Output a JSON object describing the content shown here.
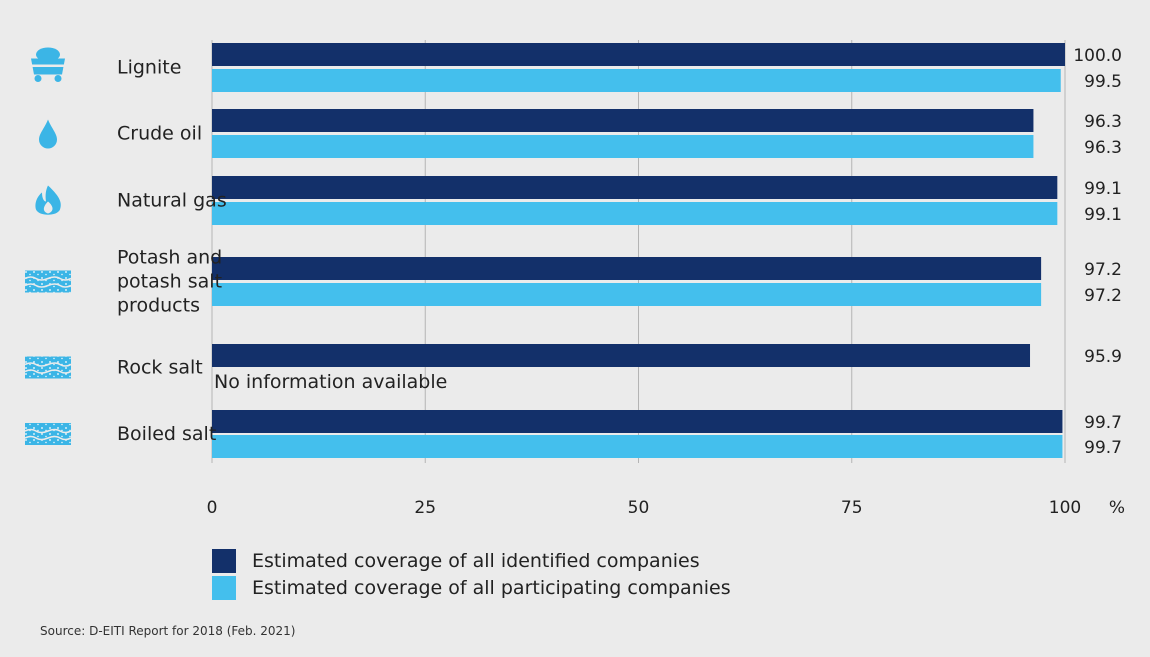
{
  "colors": {
    "identified": "#13306a",
    "participating": "#44bfed",
    "icon": "#3bb5e6",
    "grid": "#b4b4b4",
    "background": "#ebebeb"
  },
  "chart_data": {
    "type": "bar",
    "orientation": "horizontal",
    "categories": [
      "Lignite",
      "Crude oil",
      "Natural gas",
      "Potash and potash salt products",
      "Rock salt",
      "Boiled salt"
    ],
    "category_icons": [
      "mine-cart-icon",
      "oil-drop-icon",
      "gas-flame-icon",
      "salt-layer-icon",
      "salt-layer-icon",
      "salt-layer-icon"
    ],
    "series": [
      {
        "name": "Estimated coverage of all identified companies",
        "values": [
          100.0,
          96.3,
          99.1,
          97.2,
          95.9,
          99.7
        ]
      },
      {
        "name": "Estimated coverage of all participating companies",
        "values": [
          99.5,
          96.3,
          99.1,
          97.2,
          null,
          99.7
        ]
      }
    ],
    "value_labels": [
      [
        "100.0",
        "96.3",
        "99.1",
        "97.2",
        "95.9",
        "99.7"
      ],
      [
        "99.5",
        "96.3",
        "99.1",
        "97.2",
        "",
        "99.7"
      ]
    ],
    "missing_note": "No information available",
    "xlim": [
      0,
      100
    ],
    "xticks": [
      "0",
      "25",
      "50",
      "75",
      "100"
    ],
    "xunit": "%",
    "grid": true,
    "legend_position": "bottom-left"
  },
  "source": "Source: D-EITI Report for 2018 (Feb. 2021)"
}
